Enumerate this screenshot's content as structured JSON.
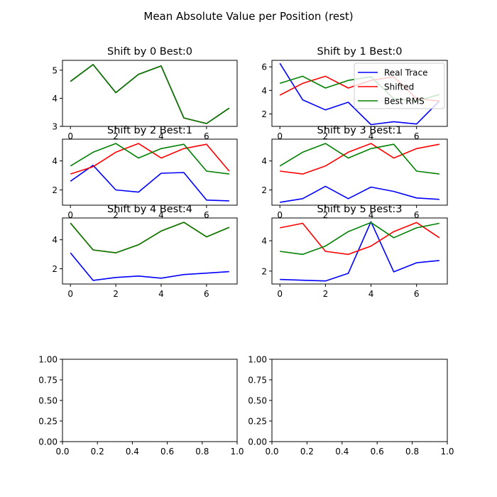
{
  "figure": {
    "title": "Mean Absolute Value per Position (rest)",
    "colors": {
      "Real Trace": "#0000ff",
      "Shifted": "#ff0000",
      "Best RMS": "#008000"
    }
  },
  "legend": {
    "location": "upper right of 'Shift by 1 Best:0' panel",
    "entries": [
      "Real Trace",
      "Shifted",
      "Best RMS"
    ]
  },
  "chart_data": [
    {
      "type": "line",
      "title": "Shift by 0 Best:0",
      "x": [
        0,
        1,
        2,
        3,
        4,
        5,
        6,
        7
      ],
      "xlim": [
        -0.35,
        7.35
      ],
      "ylim": [
        3.0,
        5.35
      ],
      "xticks": [
        0,
        2,
        4,
        6
      ],
      "yticks": [
        3,
        4,
        5
      ],
      "series": [
        {
          "name": "Real Trace",
          "values": [
            4.6,
            5.2,
            4.2,
            4.85,
            5.15,
            3.3,
            3.1,
            3.65
          ]
        },
        {
          "name": "Shifted",
          "values": [
            4.6,
            5.2,
            4.2,
            4.85,
            5.15,
            3.3,
            3.1,
            3.65
          ]
        },
        {
          "name": "Best RMS",
          "values": [
            4.6,
            5.2,
            4.2,
            4.85,
            5.15,
            3.3,
            3.1,
            3.65
          ]
        }
      ]
    },
    {
      "type": "line",
      "title": "Shift by 1 Best:0",
      "x": [
        0,
        1,
        2,
        3,
        4,
        5,
        6,
        7
      ],
      "xlim": [
        -0.35,
        7.35
      ],
      "ylim": [
        0.95,
        6.55
      ],
      "xticks": [
        0,
        2,
        4,
        6
      ],
      "yticks": [
        2,
        4,
        6
      ],
      "series": [
        {
          "name": "Real Trace",
          "values": [
            6.3,
            3.2,
            2.35,
            3.0,
            1.1,
            1.35,
            1.15,
            3.1
          ]
        },
        {
          "name": "Shifted",
          "values": [
            3.6,
            4.6,
            5.2,
            4.2,
            4.85,
            5.15,
            3.3,
            3.1
          ]
        },
        {
          "name": "Best RMS",
          "values": [
            4.6,
            5.2,
            4.2,
            4.85,
            5.15,
            3.3,
            3.1,
            3.65
          ]
        }
      ]
    },
    {
      "type": "line",
      "title": "Shift by 2 Best:1",
      "x": [
        0,
        1,
        2,
        3,
        4,
        5,
        6,
        7
      ],
      "xlim": [
        -0.35,
        7.35
      ],
      "ylim": [
        0.95,
        5.5
      ],
      "xticks": [
        0,
        2,
        4,
        6
      ],
      "yticks": [
        2,
        4
      ],
      "series": [
        {
          "name": "Real Trace",
          "values": [
            2.6,
            3.7,
            2.0,
            1.85,
            3.15,
            3.2,
            1.3,
            1.25
          ]
        },
        {
          "name": "Shifted",
          "values": [
            3.1,
            3.6,
            4.6,
            5.2,
            4.2,
            4.85,
            5.15,
            3.3
          ]
        },
        {
          "name": "Best RMS",
          "values": [
            3.65,
            4.6,
            5.2,
            4.2,
            4.85,
            5.15,
            3.3,
            3.1
          ]
        }
      ]
    },
    {
      "type": "line",
      "title": "Shift by 3 Best:1",
      "x": [
        0,
        1,
        2,
        3,
        4,
        5,
        6,
        7
      ],
      "xlim": [
        -0.35,
        7.35
      ],
      "ylim": [
        0.95,
        5.5
      ],
      "xticks": [
        0,
        2,
        4,
        6
      ],
      "yticks": [
        2,
        4
      ],
      "series": [
        {
          "name": "Real Trace",
          "values": [
            1.15,
            1.4,
            2.25,
            1.4,
            2.2,
            1.9,
            1.45,
            1.35
          ]
        },
        {
          "name": "Shifted",
          "values": [
            3.3,
            3.1,
            3.65,
            4.6,
            5.2,
            4.2,
            4.85,
            5.15
          ]
        },
        {
          "name": "Best RMS",
          "values": [
            3.65,
            4.6,
            5.2,
            4.2,
            4.85,
            5.15,
            3.3,
            3.1
          ]
        }
      ]
    },
    {
      "type": "line",
      "title": "Shift by 4 Best:4",
      "x": [
        0,
        1,
        2,
        3,
        4,
        5,
        6,
        7
      ],
      "xlim": [
        -0.35,
        7.35
      ],
      "ylim": [
        0.95,
        5.5
      ],
      "xticks": [
        0,
        2,
        4,
        6
      ],
      "yticks": [
        2,
        4
      ],
      "series": [
        {
          "name": "Real Trace",
          "values": [
            3.1,
            1.2,
            1.4,
            1.5,
            1.35,
            1.6,
            1.7,
            1.8
          ]
        },
        {
          "name": "Shifted",
          "values": [
            5.15,
            3.3,
            3.1,
            3.65,
            4.6,
            5.2,
            4.2,
            4.85
          ]
        },
        {
          "name": "Best RMS",
          "values": [
            5.15,
            3.3,
            3.1,
            3.65,
            4.6,
            5.2,
            4.2,
            4.85
          ]
        }
      ]
    },
    {
      "type": "line",
      "title": "Shift by 5 Best:3",
      "x": [
        0,
        1,
        2,
        3,
        4,
        5,
        6,
        7
      ],
      "xlim": [
        -0.35,
        7.35
      ],
      "ylim": [
        1.15,
        5.5
      ],
      "xticks": [
        0,
        2,
        4,
        6
      ],
      "yticks": [
        2,
        4
      ],
      "series": [
        {
          "name": "Real Trace",
          "values": [
            1.45,
            1.4,
            1.35,
            1.85,
            5.25,
            1.95,
            2.55,
            2.7
          ]
        },
        {
          "name": "Shifted",
          "values": [
            4.85,
            5.15,
            3.3,
            3.1,
            3.65,
            4.6,
            5.2,
            4.2
          ]
        },
        {
          "name": "Best RMS",
          "values": [
            3.3,
            3.1,
            3.65,
            4.6,
            5.2,
            4.2,
            4.85,
            5.15
          ]
        }
      ]
    },
    {
      "type": "line",
      "title": "",
      "xlim": [
        0,
        1
      ],
      "ylim": [
        0,
        1
      ],
      "xtick_labels": [
        "0.0",
        "0.2",
        "0.4",
        "0.6",
        "0.8",
        "1.0"
      ],
      "ytick_labels": [
        "0.00",
        "0.25",
        "0.50",
        "0.75",
        "1.00"
      ],
      "series": []
    },
    {
      "type": "line",
      "title": "",
      "xlim": [
        0,
        1
      ],
      "ylim": [
        0,
        1
      ],
      "xtick_labels": [
        "0.0",
        "0.2",
        "0.4",
        "0.6",
        "0.8",
        "1.0"
      ],
      "ytick_labels": [
        "0.00",
        "0.25",
        "0.50",
        "0.75",
        "1.00"
      ],
      "series": []
    }
  ]
}
